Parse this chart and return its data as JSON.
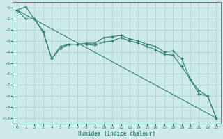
{
  "xlabel": "Humidex (Indice chaleur)",
  "bg_color": "#ceeae8",
  "grid_color": "#acd4d0",
  "line_color": "#2e7d72",
  "xlim": [
    -0.5,
    23.5
  ],
  "ylim": [
    -10.5,
    0.5
  ],
  "xticks": [
    0,
    1,
    2,
    3,
    4,
    5,
    6,
    7,
    8,
    9,
    10,
    11,
    12,
    13,
    14,
    15,
    16,
    17,
    18,
    19,
    20,
    21,
    22,
    23
  ],
  "yticks": [
    0,
    -1,
    -2,
    -3,
    -4,
    -5,
    -6,
    -7,
    -8,
    -9,
    -10
  ],
  "line1_x": [
    0,
    1,
    2,
    3,
    4,
    5,
    6,
    7,
    8,
    9,
    10,
    11,
    12,
    13,
    14,
    15,
    16,
    17,
    18,
    19,
    20,
    21,
    22,
    23
  ],
  "line1_y": [
    -0.2,
    0.1,
    -1.0,
    -2.2,
    -4.6,
    -3.7,
    -3.3,
    -3.3,
    -3.2,
    -3.2,
    -2.7,
    -2.6,
    -2.5,
    -2.8,
    -3.0,
    -3.3,
    -3.5,
    -4.0,
    -3.9,
    -4.6,
    -6.5,
    -7.8,
    -8.0,
    -10.0
  ],
  "line2_x": [
    0,
    1,
    2,
    3,
    4,
    5,
    6,
    7,
    8,
    9,
    10,
    11,
    12,
    13,
    14,
    15,
    16,
    17,
    18,
    19,
    20,
    21,
    22,
    23
  ],
  "line2_y": [
    -0.2,
    -1.0,
    -1.0,
    -2.1,
    -4.6,
    -3.5,
    -3.3,
    -3.3,
    -3.3,
    -3.4,
    -3.1,
    -3.0,
    -2.7,
    -3.0,
    -3.2,
    -3.5,
    -3.8,
    -4.2,
    -4.3,
    -5.3,
    -6.5,
    -7.5,
    -8.0,
    -10.0
  ],
  "line3_x": [
    0,
    23
  ],
  "line3_y": [
    -0.2,
    -10.0
  ]
}
